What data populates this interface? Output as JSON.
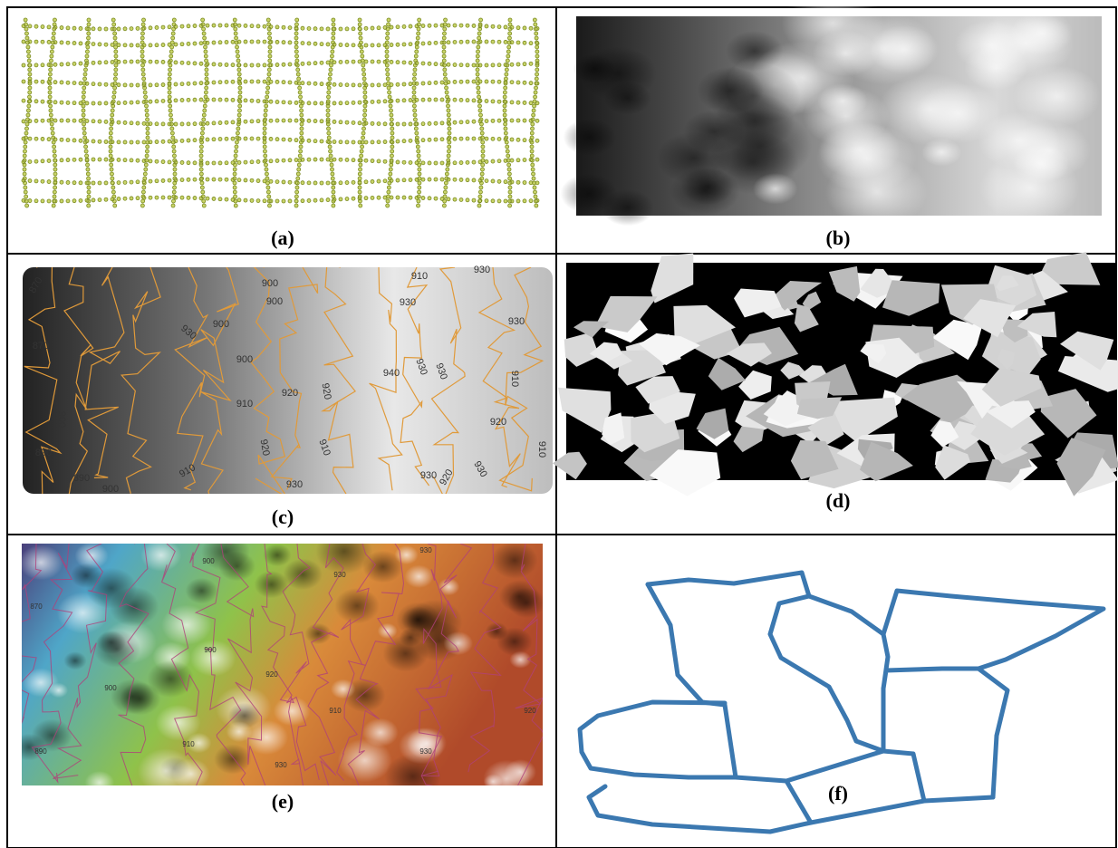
{
  "figure": {
    "panels": [
      {
        "caption": "(a)"
      },
      {
        "caption": "(b)"
      },
      {
        "caption": "(c)",
        "contour_labels": [
          "870",
          "930",
          "910",
          "900",
          "900",
          "930",
          "930",
          "900",
          "930",
          "870",
          "900",
          "940",
          "930",
          "930",
          "910",
          "920",
          "920",
          "910",
          "900",
          "920",
          "920",
          "910",
          "910",
          "910",
          "930",
          "920",
          "930",
          "930",
          "900",
          "890",
          "890"
        ]
      },
      {
        "caption": "(d)"
      },
      {
        "caption": "(e)",
        "contour_labels": [
          "870",
          "900",
          "930",
          "930",
          "900",
          "920",
          "900",
          "910",
          "920",
          "890",
          "910",
          "930",
          "930"
        ]
      },
      {
        "caption": "(f)"
      }
    ]
  }
}
